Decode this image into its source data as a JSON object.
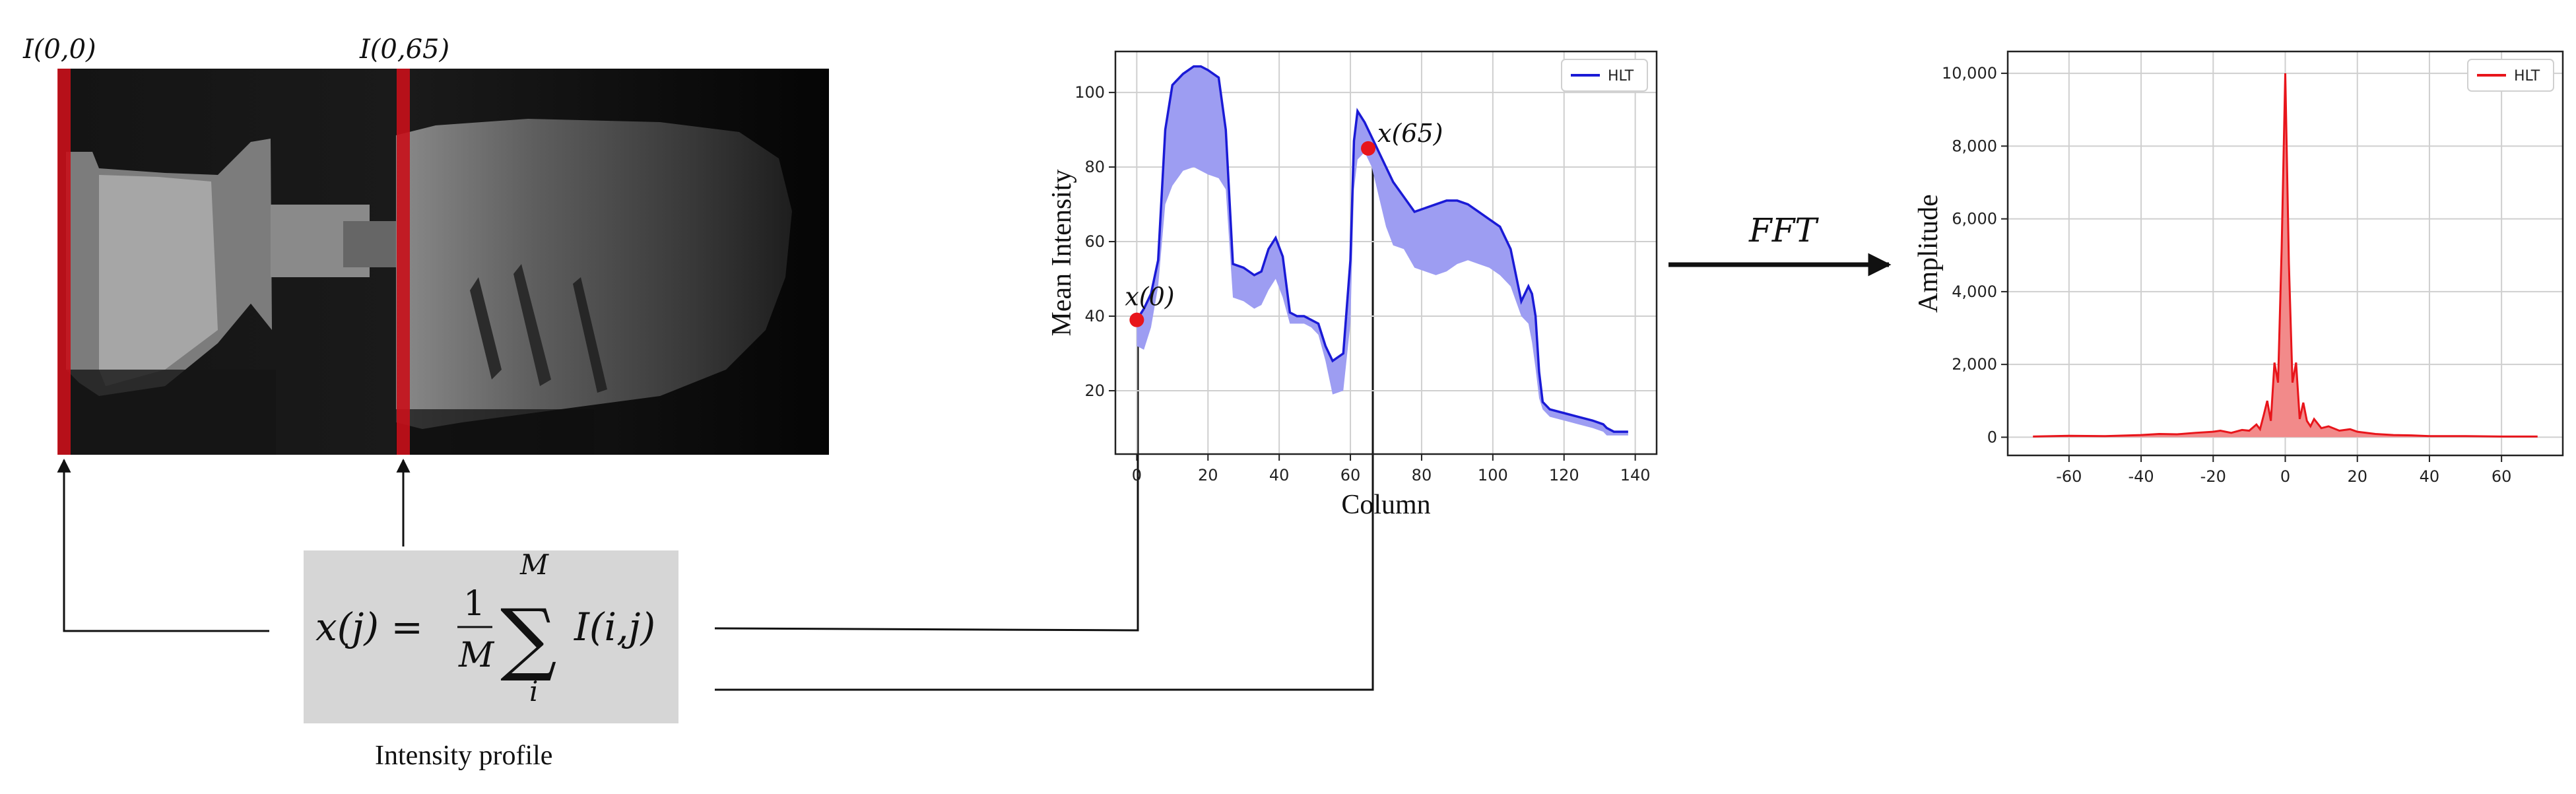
{
  "labels": {
    "col0": "I(0,0)",
    "col65": "I(0,65)",
    "formula_lhs": "x(j) =",
    "formula_frac_num": "1",
    "formula_frac_den": "M",
    "formula_sum_sup": "M",
    "formula_sum_sub": "i",
    "formula_rhs": "I(i,j)",
    "formula_caption": "Intensity profile",
    "marker0": "x(0)",
    "marker65": "x(65)",
    "fft": "FFT"
  },
  "colors": {
    "column_highlight": "#c8101a",
    "profile_line": "#1a1ad6",
    "profile_fill": "#9d9df2",
    "fft_line": "#e8151b",
    "fft_fill": "#f28a8a",
    "marker": "#e8151b",
    "formula_bg": "#d6d6d6"
  },
  "chart_data": [
    {
      "type": "area",
      "xlabel": "Column",
      "ylabel": "Mean Intensity",
      "xlim": [
        -6,
        146
      ],
      "ylim": [
        3,
        111
      ],
      "xticks": [
        0,
        20,
        40,
        60,
        80,
        100,
        120,
        140
      ],
      "yticks": [
        20,
        40,
        60,
        80,
        100
      ],
      "grid": true,
      "legend": "top-right",
      "series": [
        {
          "name": "HLT",
          "x": [
            0,
            2,
            4,
            6,
            8,
            10,
            13,
            16,
            18,
            20,
            23,
            25,
            27,
            30,
            33,
            35,
            37,
            39,
            41,
            43,
            45,
            47,
            49,
            51,
            53,
            55,
            58,
            60,
            61,
            62,
            64,
            66,
            68,
            70,
            72,
            75,
            78,
            81,
            84,
            87,
            90,
            93,
            96,
            99,
            102,
            105,
            108,
            110,
            111,
            112,
            113,
            114,
            116,
            120,
            124,
            128,
            131,
            132,
            134,
            136,
            138
          ],
          "upper": [
            39,
            42,
            46,
            55,
            90,
            102,
            105,
            107,
            107,
            106,
            104,
            90,
            54,
            53,
            51,
            52,
            58,
            61,
            56,
            41,
            40,
            40,
            39,
            38,
            32,
            28,
            30,
            55,
            87,
            95,
            92,
            88,
            84,
            80,
            76,
            72,
            68,
            69,
            70,
            71,
            71,
            70,
            68,
            66,
            64,
            58,
            44,
            48,
            46,
            40,
            25,
            17,
            15,
            14,
            13,
            12,
            11,
            10,
            9,
            9,
            9
          ],
          "lower": [
            32,
            31,
            37,
            48,
            70,
            75,
            79,
            80,
            79,
            78,
            77,
            74,
            45,
            44,
            42,
            43,
            47,
            50,
            45,
            38,
            38,
            38,
            37,
            35,
            28,
            19,
            20,
            38,
            74,
            82,
            84,
            80,
            72,
            64,
            59,
            58,
            53,
            52,
            51,
            52,
            54,
            55,
            54,
            53,
            51,
            48,
            40,
            38,
            33,
            26,
            18,
            15,
            13,
            12,
            11,
            10,
            9,
            8,
            8,
            8,
            8
          ]
        }
      ],
      "markers": [
        {
          "label": "x(0)",
          "x": 0,
          "y": 39
        },
        {
          "label": "x(65)",
          "x": 65,
          "y": 85
        }
      ]
    },
    {
      "type": "area",
      "xlabel": "",
      "ylabel": "Amplitude",
      "xlim": [
        -77,
        77
      ],
      "ylim": [
        -500,
        10600
      ],
      "xticks": [
        -60,
        -40,
        -20,
        0,
        20,
        40,
        60
      ],
      "yticks": [
        0,
        2000,
        4000,
        6000,
        8000,
        10000
      ],
      "ytick_labels": [
        "0",
        "2,000",
        "4,000",
        "6,000",
        "8,000",
        "10,000"
      ],
      "grid": true,
      "legend": "top-right",
      "series": [
        {
          "name": "HLT",
          "x": [
            -70,
            -60,
            -50,
            -40,
            -35,
            -30,
            -25,
            -20,
            -18,
            -15,
            -12,
            -10,
            -8,
            -7,
            -6,
            -5,
            -4,
            -3,
            -2,
            -1,
            0,
            1,
            2,
            3,
            4,
            5,
            6,
            7,
            8,
            10,
            12,
            15,
            18,
            20,
            25,
            30,
            35,
            40,
            50,
            60,
            70
          ],
          "values": [
            20,
            40,
            30,
            60,
            90,
            80,
            120,
            150,
            180,
            120,
            200,
            180,
            350,
            220,
            600,
            1000,
            450,
            2050,
            1500,
            5200,
            10000,
            4800,
            1500,
            2050,
            500,
            950,
            450,
            300,
            500,
            250,
            300,
            180,
            220,
            150,
            90,
            60,
            50,
            30,
            30,
            20,
            20
          ]
        }
      ]
    }
  ]
}
